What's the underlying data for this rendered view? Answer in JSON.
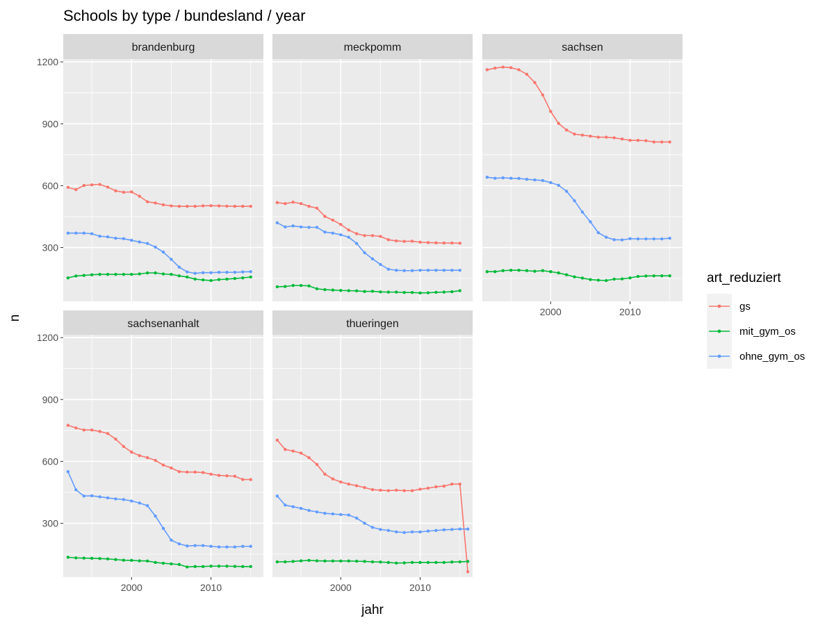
{
  "chart_data": {
    "type": "line",
    "title": "Schools by type / bundesland / year",
    "xlabel": "jahr",
    "ylabel": "n",
    "xlim": [
      1991.4,
      2016.6
    ],
    "ylim": [
      39,
      1214
    ],
    "x_ticks": [
      2000,
      2010
    ],
    "y_ticks": [
      300,
      600,
      900,
      1200
    ],
    "grid": true,
    "legend": {
      "title": "art_reduziert",
      "placement": "right",
      "entries": [
        "gs",
        "mit_gym_os",
        "ohne_gym_os"
      ]
    },
    "colors": {
      "gs": "#F8766D",
      "mit_gym_os": "#00BA38",
      "ohne_gym_os": "#619CFF",
      "panel_bg": "#EBEBEB",
      "strip_bg": "#D9D9D9",
      "grid": "#FFFFFF"
    },
    "panels": [
      {
        "name": "brandenburg",
        "series": [
          {
            "name": "gs",
            "x": [
              1992,
              1993,
              1994,
              1995,
              1996,
              1997,
              1998,
              1999,
              2000,
              2001,
              2002,
              2003,
              2004,
              2005,
              2006,
              2007,
              2008,
              2009,
              2010,
              2011,
              2012,
              2013,
              2014,
              2015
            ],
            "y": [
              592,
              581,
              601,
              604,
              606,
              593,
              575,
              568,
              570,
              549,
              522,
              516,
              507,
              502,
              500,
              500,
              500,
              502,
              503,
              502,
              501,
              500,
              500,
              500
            ]
          },
          {
            "name": "mit_gym_os",
            "x": [
              1992,
              1993,
              1994,
              1995,
              1996,
              1997,
              1998,
              1999,
              2000,
              2001,
              2002,
              2003,
              2004,
              2005,
              2006,
              2007,
              2008,
              2009,
              2010,
              2011,
              2012,
              2013,
              2014,
              2015
            ],
            "y": [
              153,
              162,
              165,
              168,
              170,
              170,
              170,
              170,
              170,
              172,
              177,
              177,
              172,
              170,
              163,
              157,
              147,
              143,
              140,
              145,
              147,
              150,
              153,
              157
            ]
          },
          {
            "name": "ohne_gym_os",
            "x": [
              1992,
              1993,
              1994,
              1995,
              1996,
              1997,
              1998,
              1999,
              2000,
              2001,
              2002,
              2003,
              2004,
              2005,
              2006,
              2007,
              2008,
              2009,
              2010,
              2011,
              2012,
              2013,
              2014,
              2015
            ],
            "y": [
              370,
              370,
              370,
              367,
              355,
              352,
              345,
              343,
              335,
              327,
              320,
              302,
              278,
              243,
              205,
              182,
              175,
              178,
              178,
              180,
              180,
              180,
              182,
              183
            ]
          }
        ]
      },
      {
        "name": "meckpomm",
        "series": [
          {
            "name": "gs",
            "x": [
              1992,
              1993,
              1994,
              1995,
              1996,
              1997,
              1998,
              1999,
              2000,
              2001,
              2002,
              2003,
              2004,
              2005,
              2006,
              2007,
              2008,
              2009,
              2010,
              2011,
              2012,
              2013,
              2014,
              2015
            ],
            "y": [
              518,
              513,
              520,
              513,
              500,
              491,
              451,
              433,
              412,
              385,
              367,
              358,
              358,
              354,
              338,
              332,
              330,
              331,
              326,
              324,
              323,
              322,
              322,
              321
            ]
          },
          {
            "name": "mit_gym_os",
            "x": [
              1992,
              1993,
              1994,
              1995,
              1996,
              1997,
              1998,
              1999,
              2000,
              2001,
              2002,
              2003,
              2004,
              2005,
              2006,
              2007,
              2008,
              2009,
              2010,
              2011,
              2012,
              2013,
              2014,
              2015
            ],
            "y": [
              110,
              111,
              116,
              116,
              114,
              100,
              96,
              94,
              92,
              91,
              90,
              87,
              88,
              85,
              84,
              84,
              82,
              82,
              80,
              81,
              83,
              84,
              86,
              91
            ]
          },
          {
            "name": "ohne_gym_os",
            "x": [
              1992,
              1993,
              1994,
              1995,
              1996,
              1997,
              1998,
              1999,
              2000,
              2001,
              2002,
              2003,
              2004,
              2005,
              2006,
              2007,
              2008,
              2009,
              2010,
              2011,
              2012,
              2013,
              2014,
              2015
            ],
            "y": [
              420,
              400,
              405,
              400,
              398,
              398,
              375,
              370,
              362,
              350,
              320,
              275,
              245,
              218,
              195,
              190,
              188,
              188,
              190,
              190,
              190,
              190,
              190,
              190
            ]
          }
        ]
      },
      {
        "name": "sachsen",
        "series": [
          {
            "name": "gs",
            "x": [
              1992,
              1993,
              1994,
              1995,
              1996,
              1997,
              1998,
              1999,
              2000,
              2001,
              2002,
              2003,
              2004,
              2005,
              2006,
              2007,
              2008,
              2009,
              2010,
              2011,
              2012,
              2013,
              2014,
              2015
            ],
            "y": [
              1162,
              1170,
              1175,
              1172,
              1162,
              1140,
              1100,
              1040,
              960,
              902,
              870,
              850,
              845,
              840,
              835,
              835,
              832,
              826,
              820,
              820,
              818,
              812,
              812,
              812
            ]
          },
          {
            "name": "mit_gym_os",
            "x": [
              1992,
              1993,
              1994,
              1995,
              1996,
              1997,
              1998,
              1999,
              2000,
              2001,
              2002,
              2003,
              2004,
              2005,
              2006,
              2007,
              2008,
              2009,
              2010,
              2011,
              2012,
              2013,
              2014,
              2015
            ],
            "y": [
              183,
              183,
              188,
              190,
              190,
              188,
              185,
              188,
              183,
              177,
              168,
              158,
              152,
              145,
              142,
              140,
              147,
              148,
              153,
              160,
              162,
              163,
              163,
              163
            ]
          },
          {
            "name": "ohne_gym_os",
            "x": [
              1992,
              1993,
              1994,
              1995,
              1996,
              1997,
              1998,
              1999,
              2000,
              2001,
              2002,
              2003,
              2004,
              2005,
              2006,
              2007,
              2008,
              2009,
              2010,
              2011,
              2012,
              2013,
              2014,
              2015
            ],
            "y": [
              641,
              636,
              638,
              636,
              635,
              631,
              628,
              625,
              615,
              602,
              573,
              527,
              472,
              425,
              372,
              350,
              338,
              337,
              343,
              342,
              342,
              342,
              342,
              345
            ]
          }
        ]
      },
      {
        "name": "sachsenanhalt",
        "series": [
          {
            "name": "gs",
            "x": [
              1992,
              1993,
              1994,
              1995,
              1996,
              1997,
              1998,
              1999,
              2000,
              2001,
              2002,
              2003,
              2004,
              2005,
              2006,
              2007,
              2008,
              2009,
              2010,
              2011,
              2012,
              2013,
              2014,
              2015
            ],
            "y": [
              775,
              762,
              752,
              752,
              745,
              735,
              708,
              672,
              645,
              628,
              618,
              605,
              582,
              568,
              550,
              548,
              548,
              546,
              538,
              532,
              530,
              528,
              512,
              512
            ]
          },
          {
            "name": "mit_gym_os",
            "x": [
              1992,
              1993,
              1994,
              1995,
              1996,
              1997,
              1998,
              1999,
              2000,
              2001,
              2002,
              2003,
              2004,
              2005,
              2006,
              2007,
              2008,
              2009,
              2010,
              2011,
              2012,
              2013,
              2014,
              2015
            ],
            "y": [
              135,
              132,
              131,
              130,
              129,
              127,
              124,
              121,
              120,
              118,
              117,
              110,
              106,
              103,
              100,
              88,
              90,
              90,
              92,
              92,
              92,
              91,
              90,
              90
            ]
          },
          {
            "name": "ohne_gym_os",
            "x": [
              1992,
              1993,
              1994,
              1995,
              1996,
              1997,
              1998,
              1999,
              2000,
              2001,
              2002,
              2003,
              2004,
              2005,
              2006,
              2007,
              2008,
              2009,
              2010,
              2011,
              2012,
              2013,
              2014,
              2015
            ],
            "y": [
              550,
              462,
              432,
              433,
              428,
              423,
              418,
              415,
              408,
              398,
              385,
              335,
              275,
              218,
              200,
              190,
              192,
              192,
              188,
              185,
              185,
              185,
              188,
              188
            ]
          }
        ]
      },
      {
        "name": "thueringen",
        "series": [
          {
            "name": "gs",
            "x": [
              1992,
              1993,
              1994,
              1995,
              1996,
              1997,
              1998,
              1999,
              2000,
              2001,
              2002,
              2003,
              2004,
              2005,
              2006,
              2007,
              2008,
              2009,
              2010,
              2011,
              2012,
              2013,
              2014,
              2015,
              2016
            ],
            "y": [
              703,
              658,
              650,
              640,
              618,
              585,
              538,
              515,
              500,
              490,
              482,
              473,
              463,
              460,
              458,
              460,
              458,
              458,
              465,
              470,
              477,
              480,
              490,
              490,
              65
            ]
          },
          {
            "name": "mit_gym_os",
            "x": [
              1992,
              1993,
              1994,
              1995,
              1996,
              1997,
              1998,
              1999,
              2000,
              2001,
              2002,
              2003,
              2004,
              2005,
              2006,
              2007,
              2008,
              2009,
              2010,
              2011,
              2012,
              2013,
              2014,
              2015,
              2016
            ],
            "y": [
              113,
              113,
              115,
              118,
              120,
              118,
              117,
              117,
              117,
              117,
              116,
              115,
              113,
              112,
              110,
              107,
              108,
              110,
              110,
              110,
              110,
              110,
              112,
              113,
              115
            ]
          },
          {
            "name": "ohne_gym_os",
            "x": [
              1992,
              1993,
              1994,
              1995,
              1996,
              1997,
              1998,
              1999,
              2000,
              2001,
              2002,
              2003,
              2004,
              2005,
              2006,
              2007,
              2008,
              2009,
              2010,
              2011,
              2012,
              2013,
              2014,
              2015,
              2016
            ],
            "y": [
              432,
              388,
              380,
              372,
              362,
              355,
              348,
              345,
              342,
              340,
              325,
              300,
              280,
              270,
              265,
              258,
              255,
              258,
              258,
              262,
              265,
              268,
              270,
              272,
              272
            ]
          }
        ]
      }
    ]
  }
}
